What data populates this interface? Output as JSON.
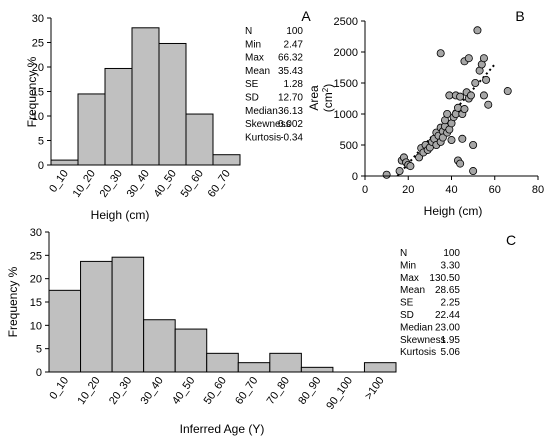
{
  "chart_data": [
    {
      "panel": "A",
      "type": "bar",
      "categories": [
        "0_10",
        "10_20",
        "20_30",
        "30_40",
        "40_50",
        "50_60",
        "60_70"
      ],
      "values": [
        1,
        14.5,
        19.7,
        28,
        24.8,
        10.4,
        2.1
      ],
      "xlabel": "Heigh (cm)",
      "ylabel": "Frequency %",
      "ylim": [
        0,
        30
      ],
      "yticks": [
        "0",
        "5",
        "10",
        "15",
        "20",
        "25",
        "30"
      ],
      "bar_color": "#c0c0c0",
      "stats": [
        {
          "label": "N",
          "value": "100"
        },
        {
          "label": "Min",
          "value": "2.47"
        },
        {
          "label": "Max",
          "value": "66.32"
        },
        {
          "label": "Mean",
          "value": "35.43"
        },
        {
          "label": "SE",
          "value": "1.28"
        },
        {
          "label": "SD",
          "value": "12.70"
        },
        {
          "label": "Median",
          "value": "36.13"
        },
        {
          "label": "Skewness",
          "value": "0.002"
        },
        {
          "label": "Kurtosis",
          "value": "-0.34"
        }
      ]
    },
    {
      "panel": "B",
      "type": "scatter",
      "xlabel": "Heigh (cm)",
      "ylabel_main": "Area",
      "ylabel_unit": "(cm",
      "ylabel_sup": "2",
      "ylabel_close": ")",
      "xlim": [
        0,
        80
      ],
      "ylim": [
        0,
        2500
      ],
      "xticks": [
        "0",
        "20",
        "40",
        "60",
        "80"
      ],
      "yticks": [
        "0",
        "500",
        "1000",
        "1500",
        "2000",
        "2500"
      ],
      "trendline": {
        "x": [
          15,
          60
        ],
        "y": [
          0,
          1800
        ]
      },
      "point_color": "#a6a6a6",
      "points": [
        [
          10,
          20
        ],
        [
          16,
          80
        ],
        [
          17,
          250
        ],
        [
          18,
          300
        ],
        [
          19,
          220
        ],
        [
          20,
          180
        ],
        [
          21,
          160
        ],
        [
          25,
          300
        ],
        [
          26,
          450
        ],
        [
          27,
          380
        ],
        [
          28,
          500
        ],
        [
          29,
          420
        ],
        [
          30,
          460
        ],
        [
          31,
          550
        ],
        [
          32,
          600
        ],
        [
          33,
          500
        ],
        [
          33,
          700
        ],
        [
          34,
          650
        ],
        [
          35,
          780
        ],
        [
          35,
          550
        ],
        [
          35,
          1980
        ],
        [
          36,
          720
        ],
        [
          36,
          620
        ],
        [
          37,
          800
        ],
        [
          37,
          900
        ],
        [
          38,
          700
        ],
        [
          38,
          1000
        ],
        [
          39,
          750
        ],
        [
          39,
          1300
        ],
        [
          40,
          580
        ],
        [
          40,
          850
        ],
        [
          41,
          950
        ],
        [
          42,
          1000
        ],
        [
          42,
          1300
        ],
        [
          43,
          1100
        ],
        [
          43,
          250
        ],
        [
          44,
          1280
        ],
        [
          44,
          200
        ],
        [
          45,
          1000
        ],
        [
          45,
          600
        ],
        [
          46,
          1850
        ],
        [
          46,
          1080
        ],
        [
          47,
          1350
        ],
        [
          48,
          1900
        ],
        [
          48,
          1250
        ],
        [
          49,
          1300
        ],
        [
          50,
          500
        ],
        [
          50,
          80
        ],
        [
          51,
          1500
        ],
        [
          52,
          2350
        ],
        [
          53,
          1700
        ],
        [
          54,
          1800
        ],
        [
          55,
          1900
        ],
        [
          55,
          1300
        ],
        [
          56,
          1550
        ],
        [
          57,
          1150
        ],
        [
          66,
          1370
        ]
      ]
    },
    {
      "panel": "C",
      "type": "bar",
      "categories": [
        "0_10",
        "10_20",
        "20_30",
        "30_40",
        "40_50",
        "50_60",
        "60_70",
        "70_80",
        "80_90",
        "90_100",
        ">100"
      ],
      "values": [
        17.5,
        23.7,
        24.6,
        11.2,
        9.2,
        4,
        2,
        4,
        1,
        0,
        2
      ],
      "xlabel": "Inferred Age (Y)",
      "ylabel": "Frequency %",
      "ylim": [
        0,
        30
      ],
      "yticks": [
        "0",
        "5",
        "10",
        "15",
        "20",
        "25",
        "30"
      ],
      "bar_color": "#c0c0c0",
      "stats": [
        {
          "label": "N",
          "value": "100"
        },
        {
          "label": "Min",
          "value": "3.30"
        },
        {
          "label": "Max",
          "value": "130.50"
        },
        {
          "label": "Mean",
          "value": "28.65"
        },
        {
          "label": "SE",
          "value": "2.25"
        },
        {
          "label": "SD",
          "value": "22.44"
        },
        {
          "label": "Median",
          "value": "23.00"
        },
        {
          "label": "Skewness",
          "value": "1.95"
        },
        {
          "label": "Kurtosis",
          "value": "5.06"
        }
      ]
    }
  ]
}
